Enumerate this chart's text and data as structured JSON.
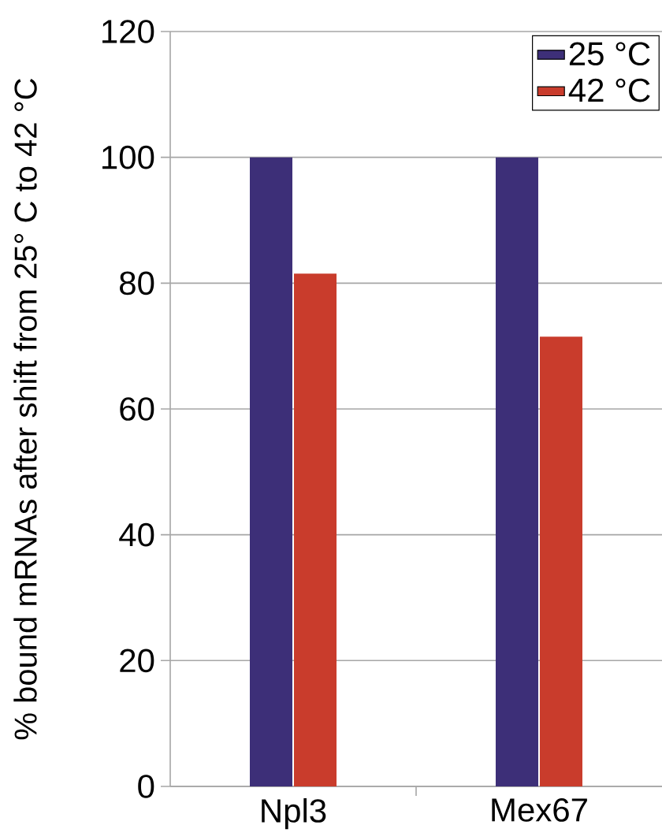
{
  "chart_data": {
    "type": "bar",
    "ylabel": "% bound mRNAs after shift from 25° C to 42 °C",
    "categories": [
      "Npl3",
      "Mex67"
    ],
    "series": [
      {
        "name": "25 °C",
        "color": "#3d2f78",
        "values": [
          100,
          100
        ]
      },
      {
        "name": "42 °C",
        "color": "#c93c2c",
        "values": [
          81.5,
          71.5
        ]
      }
    ],
    "ylim": [
      0,
      120
    ],
    "yticks": [
      0,
      20,
      40,
      60,
      80,
      100,
      120
    ],
    "grid": "y",
    "legend": "top right"
  }
}
